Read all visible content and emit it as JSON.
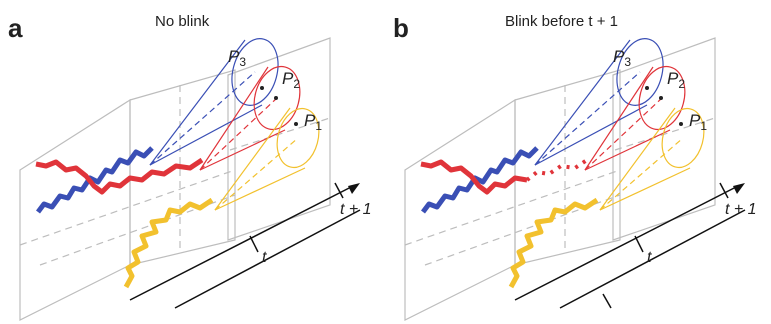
{
  "panels": [
    {
      "letter": "a",
      "title": "No blink",
      "points": [
        {
          "base": "P",
          "sub": "3"
        },
        {
          "base": "P",
          "sub": "2"
        },
        {
          "base": "P",
          "sub": "1"
        }
      ],
      "time_labels": [
        "t + 1",
        "t"
      ]
    },
    {
      "letter": "b",
      "title": "Blink before t + 1",
      "points": [
        {
          "base": "P",
          "sub": "3"
        },
        {
          "base": "P",
          "sub": "2"
        },
        {
          "base": "P",
          "sub": "1"
        }
      ],
      "time_labels": [
        "t + 1",
        "t"
      ]
    }
  ]
}
